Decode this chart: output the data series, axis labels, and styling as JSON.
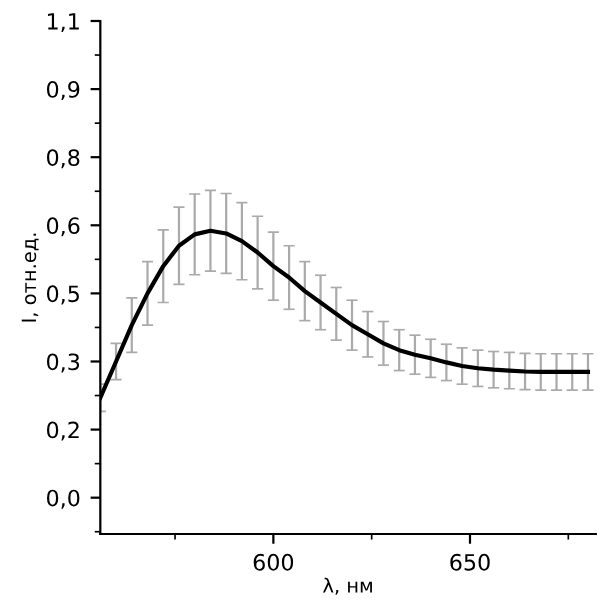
{
  "chart_data": {
    "type": "line",
    "xlabel": "λ, нм",
    "ylabel": "I, отн.ед.",
    "xlim": [
      556,
      682
    ],
    "xticks": [
      600,
      650
    ],
    "ylim": [
      -0.03,
      1.1
    ],
    "yticks": [
      {
        "value": 0.05,
        "label": "0,0"
      },
      {
        "value": 0.2,
        "label": "0,2"
      },
      {
        "value": 0.35,
        "label": "0,3"
      },
      {
        "value": 0.5,
        "label": "0,5"
      },
      {
        "value": 0.65,
        "label": "0,6"
      },
      {
        "value": 0.8,
        "label": "0,8"
      },
      {
        "value": 0.95,
        "label": "0,9"
      },
      {
        "value": 1.1,
        "label": "1,1"
      }
    ],
    "grid": false,
    "legend": false,
    "marker": "none",
    "line_style": "solid",
    "series": [
      {
        "color": "#000000",
        "x": [
          556,
          560,
          564,
          568,
          572,
          576,
          580,
          584,
          588,
          592,
          596,
          600,
          604,
          608,
          612,
          616,
          620,
          624,
          628,
          632,
          636,
          640,
          644,
          648,
          652,
          656,
          660,
          664,
          668,
          672,
          676,
          680
        ],
        "values": [
          0.27,
          0.35,
          0.43,
          0.5,
          0.56,
          0.605,
          0.63,
          0.638,
          0.632,
          0.615,
          0.59,
          0.56,
          0.535,
          0.505,
          0.48,
          0.455,
          0.43,
          0.41,
          0.39,
          0.375,
          0.365,
          0.357,
          0.348,
          0.34,
          0.335,
          0.332,
          0.33,
          0.328,
          0.327,
          0.327,
          0.327,
          0.327
        ],
        "errors": [
          0.03,
          0.04,
          0.06,
          0.07,
          0.08,
          0.085,
          0.089,
          0.089,
          0.088,
          0.085,
          0.08,
          0.075,
          0.07,
          0.065,
          0.06,
          0.058,
          0.055,
          0.05,
          0.048,
          0.045,
          0.043,
          0.042,
          0.04,
          0.04,
          0.04,
          0.04,
          0.04,
          0.04,
          0.04,
          0.04,
          0.04,
          0.04
        ]
      }
    ]
  }
}
